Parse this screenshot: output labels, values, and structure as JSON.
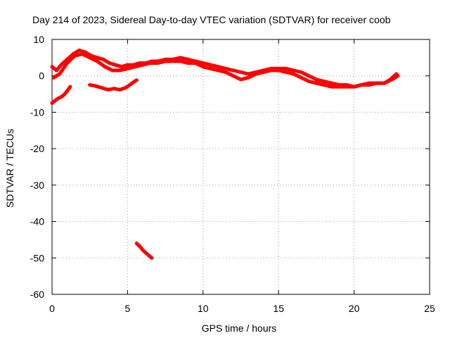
{
  "chart_data": {
    "type": "scatter",
    "title": "Day 214 of 2023, Sidereal Day-to-day VTEC variation (SDTVAR) for receiver coob",
    "xlabel": "GPS time / hours",
    "ylabel": "SDTVAR / TECUs",
    "xlim": [
      0,
      25
    ],
    "ylim": [
      -60,
      10
    ],
    "grid": true,
    "x_ticks": [
      0,
      5,
      10,
      15,
      20,
      25
    ],
    "y_ticks": [
      10,
      0,
      -10,
      -20,
      -30,
      -40,
      -50,
      -60
    ],
    "x_tick_labels": [
      "0",
      "5",
      "10",
      "15",
      "20",
      "25"
    ],
    "y_tick_labels": [
      "10",
      "0",
      "-10",
      "-20",
      "-30",
      "-40",
      "-50",
      "-60"
    ],
    "series_color": "#ff0000",
    "series": [
      {
        "name": "track-main-upper",
        "x": [
          0.0,
          0.3,
          0.6,
          1.0,
          1.4,
          1.8,
          2.2,
          2.6,
          3.0,
          3.4,
          3.8,
          4.2,
          4.6,
          5.0,
          5.4,
          5.8,
          6.2,
          6.6,
          7.0,
          7.5,
          8.0,
          8.5,
          9.0,
          9.5,
          10.0,
          10.5,
          11.0,
          11.5,
          12.0,
          12.5,
          13.0,
          13.5,
          14.0,
          14.5,
          15.0,
          15.5,
          16.0,
          16.5,
          17.0,
          17.5,
          18.0,
          18.5,
          19.0,
          19.5,
          20.0,
          20.5,
          21.0,
          21.5,
          22.0,
          22.4,
          22.8
        ],
        "y": [
          2.5,
          1.5,
          3.0,
          4.5,
          6.0,
          7.0,
          6.5,
          5.5,
          5.0,
          4.5,
          3.5,
          3.0,
          2.5,
          3.0,
          3.0,
          3.5,
          3.5,
          4.0,
          4.0,
          4.5,
          4.5,
          5.0,
          4.5,
          4.0,
          3.5,
          3.0,
          2.5,
          2.0,
          1.5,
          1.0,
          0.5,
          1.0,
          1.5,
          2.0,
          2.0,
          2.0,
          1.5,
          1.0,
          0.0,
          -1.0,
          -1.5,
          -2.0,
          -2.5,
          -2.5,
          -3.0,
          -2.5,
          -2.0,
          -2.0,
          -2.0,
          -1.0,
          0.5
        ]
      },
      {
        "name": "track-main-lower",
        "x": [
          0.1,
          0.5,
          1.0,
          1.5,
          2.0,
          2.5,
          3.0,
          3.5,
          4.0,
          4.5,
          5.0,
          5.5,
          6.0,
          6.5,
          7.0,
          7.5,
          8.0,
          8.5,
          9.0,
          9.5,
          10.0,
          10.5,
          11.0,
          11.5,
          12.0,
          12.5,
          13.0,
          13.5,
          14.0,
          14.5,
          15.0,
          15.5,
          16.0,
          16.5,
          17.0,
          17.5,
          18.0,
          18.5,
          19.0,
          19.5,
          20.0,
          20.5,
          21.0,
          21.5,
          22.0,
          22.5,
          22.9
        ],
        "y": [
          -0.5,
          0.5,
          3.5,
          5.5,
          6.0,
          5.0,
          4.0,
          2.5,
          1.5,
          1.5,
          2.0,
          2.5,
          3.0,
          3.5,
          3.5,
          4.0,
          4.0,
          4.0,
          3.5,
          3.5,
          2.5,
          2.0,
          1.5,
          1.0,
          0.0,
          -1.0,
          -0.5,
          0.5,
          1.0,
          1.5,
          1.5,
          1.0,
          0.5,
          -0.5,
          -1.5,
          -2.0,
          -2.5,
          -3.0,
          -3.0,
          -3.0,
          -3.0,
          -2.5,
          -2.5,
          -2.0,
          -2.0,
          -1.0,
          0.0
        ]
      },
      {
        "name": "track-early-segment",
        "x": [
          0.0,
          0.2,
          0.4,
          0.6,
          0.8,
          1.0,
          1.2
        ],
        "y": [
          -7.5,
          -6.8,
          -6.2,
          -5.8,
          -5.2,
          -4.2,
          -3.0
        ]
      },
      {
        "name": "track-mid-segment",
        "x": [
          2.5,
          2.9,
          3.3,
          3.7,
          4.1,
          4.5,
          4.9,
          5.3,
          5.6
        ],
        "y": [
          -2.5,
          -2.8,
          -3.3,
          -3.8,
          -3.5,
          -3.8,
          -3.2,
          -2.0,
          -1.2
        ]
      },
      {
        "name": "track-outlier-segment",
        "x": [
          5.6,
          5.8,
          6.0,
          6.2,
          6.4,
          6.6
        ],
        "y": [
          -46.0,
          -46.8,
          -47.8,
          -48.6,
          -49.3,
          -50.0
        ]
      }
    ]
  }
}
